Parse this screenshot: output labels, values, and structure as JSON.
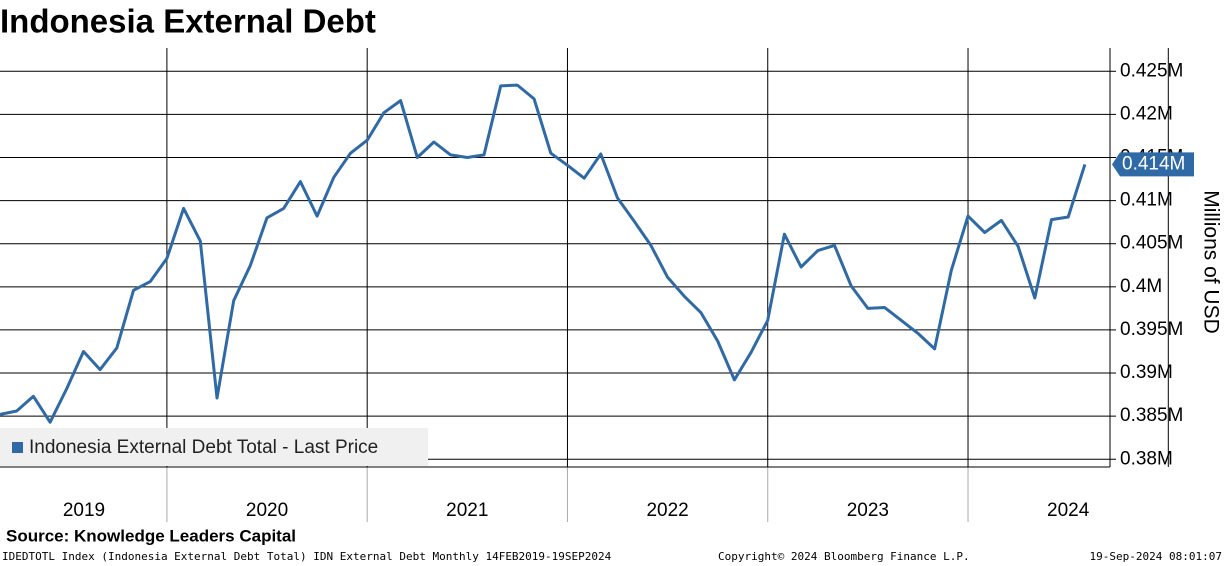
{
  "chart_data": {
    "type": "line",
    "title": "Indonesia External Debt",
    "y_axis_label": "Millions of USD",
    "source": "Source: Knowledge Leaders Capital",
    "footer_left": "IDEDTOTL Index (Indonesia External Debt Total) IDN External Debt  Monthly 14FEB2019-19SEP2024",
    "footer_center": "Copyright© 2024 Bloomberg Finance L.P.",
    "footer_right": "19-Sep-2024 08:01:07",
    "year_labels": [
      "2019",
      "2020",
      "2021",
      "2022",
      "2023",
      "2024"
    ],
    "last_price_label": "0.414M",
    "ylim": [
      0.3791,
      0.4277
    ],
    "yticks": [
      {
        "value": 0.38,
        "label": "0.38M"
      },
      {
        "value": 0.385,
        "label": "0.385M"
      },
      {
        "value": 0.39,
        "label": "0.39M"
      },
      {
        "value": 0.395,
        "label": "0.395M"
      },
      {
        "value": 0.4,
        "label": "0.4M"
      },
      {
        "value": 0.405,
        "label": "0.405M"
      },
      {
        "value": 0.41,
        "label": "0.41M"
      },
      {
        "value": 0.415,
        "label": "0.415M"
      },
      {
        "value": 0.42,
        "label": "0.42M"
      },
      {
        "value": 0.425,
        "label": "0.425M"
      }
    ],
    "grid": true,
    "legend": "bottom-left",
    "series": [
      {
        "name": "Indonesia External Debt Total - Last Price",
        "color": "#2f6aa7",
        "values": [
          0.3852,
          0.3856,
          0.3873,
          0.3843,
          0.3882,
          0.3925,
          0.3904,
          0.3929,
          0.3996,
          0.4006,
          0.4033,
          0.4091,
          0.4053,
          0.3871,
          0.3984,
          0.4025,
          0.408,
          0.4091,
          0.4122,
          0.4082,
          0.4127,
          0.4155,
          0.417,
          0.4202,
          0.4216,
          0.415,
          0.4168,
          0.4153,
          0.415,
          0.4153,
          0.4233,
          0.4234,
          0.4218,
          0.4155,
          0.4141,
          0.4126,
          0.4154,
          0.4103,
          0.4076,
          0.4048,
          0.4011,
          0.3989,
          0.397,
          0.3937,
          0.3892,
          0.3924,
          0.3961,
          0.4061,
          0.4023,
          0.4042,
          0.4048,
          0.4001,
          0.3975,
          0.3976,
          0.3961,
          0.3946,
          0.3928,
          0.4019,
          0.4082,
          0.4063,
          0.4077,
          0.4047,
          0.3987,
          0.4078,
          0.4081,
          0.4142
        ]
      }
    ]
  }
}
